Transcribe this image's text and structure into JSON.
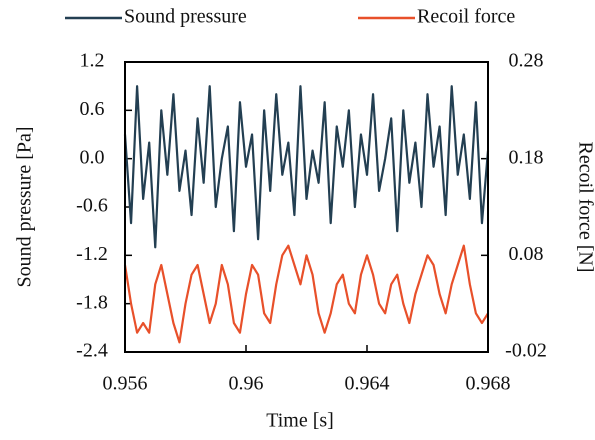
{
  "chart_data": {
    "type": "line",
    "xlabel": "Time [s]",
    "ylabel": "Sound pressure [Pa]",
    "y2label": "Recoil force [N]",
    "xlim": [
      0.956,
      0.968
    ],
    "xticks": [
      0.956,
      0.96,
      0.964,
      0.968
    ],
    "ylim": [
      -2.4,
      1.2
    ],
    "yticks": [
      -2.4,
      -1.8,
      -1.2,
      -0.6,
      {
        "value": 0,
        "label": "0.0"
      },
      0.6,
      1.2
    ],
    "y2lim": [
      -0.02,
      0.28
    ],
    "y2ticks": [
      -0.02,
      0.08,
      0.18,
      0.28
    ],
    "legend": "top",
    "x": [
      0.956,
      0.9562,
      0.9564,
      0.9566,
      0.9568,
      0.957,
      0.9572,
      0.9574,
      0.9576,
      0.9578,
      0.958,
      0.9582,
      0.9584,
      0.9586,
      0.9588,
      0.959,
      0.9592,
      0.9594,
      0.9596,
      0.9598,
      0.96,
      0.9602,
      0.9604,
      0.9606,
      0.9608,
      0.961,
      0.9612,
      0.9614,
      0.9616,
      0.9618,
      0.962,
      0.9622,
      0.9624,
      0.9626,
      0.9628,
      0.963,
      0.9632,
      0.9634,
      0.9636,
      0.9638,
      0.964,
      0.9642,
      0.9644,
      0.9646,
      0.9648,
      0.965,
      0.9652,
      0.9654,
      0.9656,
      0.9658,
      0.966,
      0.9662,
      0.9664,
      0.9666,
      0.9668,
      0.967,
      0.9672,
      0.9674,
      0.9676,
      0.9678,
      0.968
    ],
    "series": [
      {
        "name": "Sound pressure",
        "color": "#233f52",
        "axis": "y",
        "values": [
          0.3,
          -0.8,
          0.9,
          -0.5,
          0.2,
          -1.1,
          0.6,
          -0.2,
          0.8,
          -0.4,
          0.1,
          -0.7,
          0.5,
          -0.3,
          0.9,
          -0.6,
          0.0,
          0.4,
          -0.9,
          0.7,
          -0.1,
          0.3,
          -1.0,
          0.6,
          -0.4,
          0.8,
          -0.2,
          0.2,
          -0.7,
          0.9,
          -0.5,
          0.1,
          -0.3,
          0.7,
          -0.8,
          0.4,
          -0.1,
          0.6,
          -0.6,
          0.3,
          -0.2,
          0.8,
          -0.4,
          0.0,
          0.5,
          -0.9,
          0.6,
          -0.3,
          0.2,
          -0.6,
          0.8,
          -0.1,
          0.4,
          -0.7,
          0.9,
          -0.2,
          0.3,
          -0.5,
          0.7,
          -0.8,
          0.1
        ]
      },
      {
        "name": "Recoil force",
        "color": "#e8502a",
        "axis": "y2",
        "values": [
          0.07,
          0.03,
          0.0,
          0.01,
          0.0,
          0.05,
          0.07,
          0.04,
          0.01,
          -0.01,
          0.03,
          0.06,
          0.07,
          0.04,
          0.01,
          0.03,
          0.07,
          0.05,
          0.01,
          0.0,
          0.04,
          0.07,
          0.06,
          0.02,
          0.01,
          0.05,
          0.08,
          0.09,
          0.07,
          0.05,
          0.08,
          0.06,
          0.02,
          0.0,
          0.02,
          0.05,
          0.06,
          0.03,
          0.02,
          0.06,
          0.08,
          0.06,
          0.03,
          0.02,
          0.05,
          0.06,
          0.03,
          0.01,
          0.04,
          0.06,
          0.08,
          0.07,
          0.04,
          0.02,
          0.05,
          0.07,
          0.09,
          0.05,
          0.02,
          0.01,
          0.02
        ]
      }
    ]
  }
}
